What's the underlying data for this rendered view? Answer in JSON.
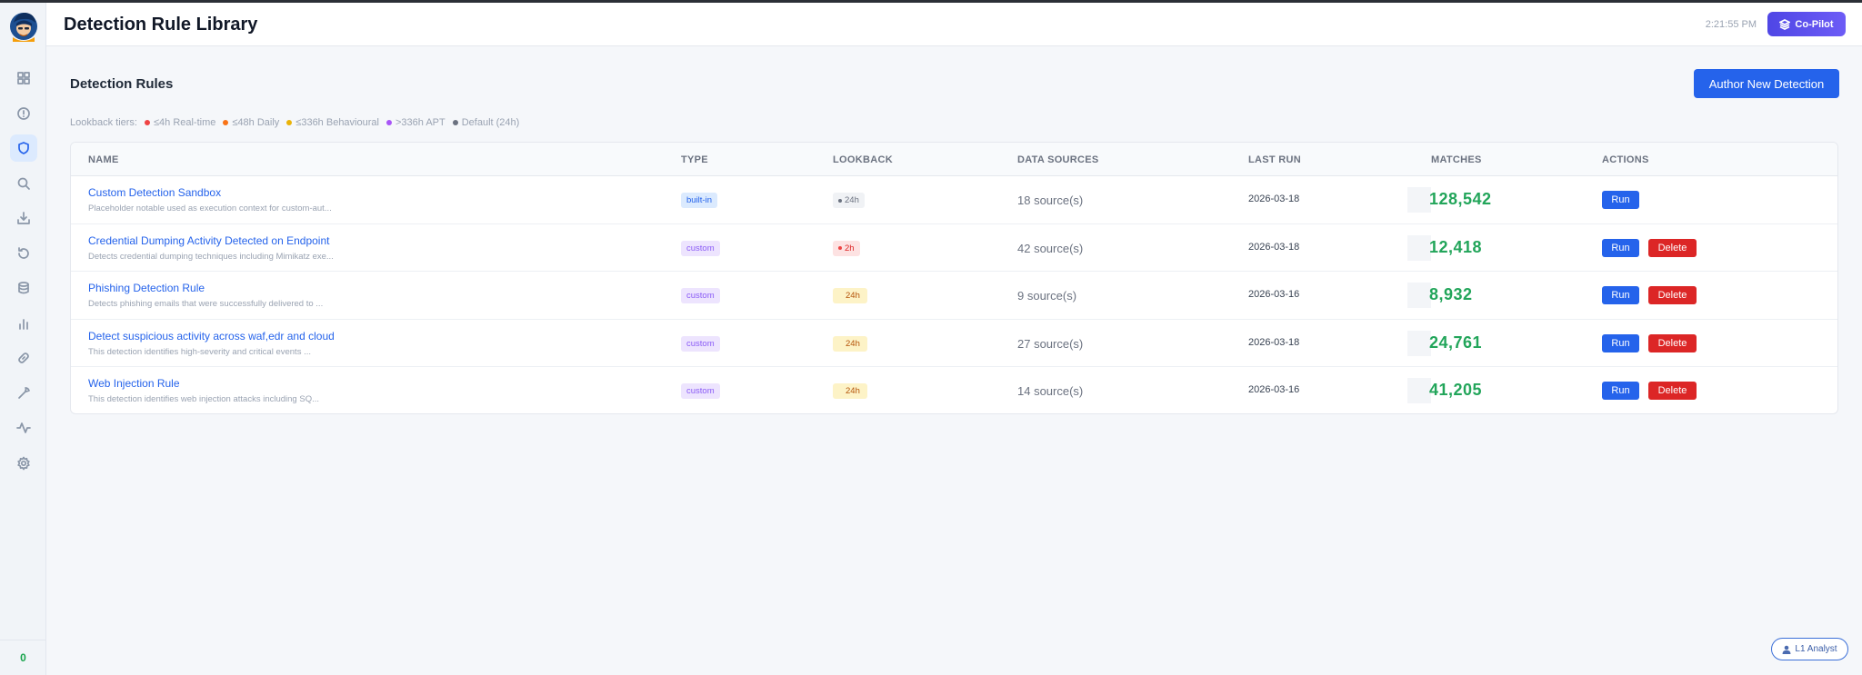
{
  "header": {
    "title": "Detection Rule Library",
    "clock": "2:21:55 PM",
    "copilot_label": "Co-Pilot"
  },
  "sidebar": {
    "items": [
      {
        "icon": "dashboard-icon",
        "active": false
      },
      {
        "icon": "alert-icon",
        "active": false
      },
      {
        "icon": "shield-icon",
        "active": true
      },
      {
        "icon": "search-icon",
        "active": false
      },
      {
        "icon": "download-icon",
        "active": false
      },
      {
        "icon": "history-icon",
        "active": false
      },
      {
        "icon": "database-icon",
        "active": false
      },
      {
        "icon": "bar-chart-icon",
        "active": false
      },
      {
        "icon": "link-icon",
        "active": false
      },
      {
        "icon": "wrench-icon",
        "active": false
      },
      {
        "icon": "activity-icon",
        "active": false
      },
      {
        "icon": "gear-icon",
        "active": false
      }
    ],
    "count": "0"
  },
  "section": {
    "title": "Detection Rules",
    "author_button": "Author New Detection"
  },
  "tiers": {
    "label": "Lookback tiers:",
    "items": [
      {
        "text": "≤4h Real-time",
        "color": "#ef4444"
      },
      {
        "text": "≤48h Daily",
        "color": "#f97316"
      },
      {
        "text": "≤336h Behavioural",
        "color": "#eab308"
      },
      {
        "text": ">336h APT",
        "color": "#a855f7"
      },
      {
        "text": "Default (24h)",
        "color": "#6b7280"
      }
    ]
  },
  "table": {
    "columns": [
      "NAME",
      "TYPE",
      "LOOKBACK",
      "DATA SOURCES",
      "LAST RUN",
      "MATCHES",
      "ACTIONS"
    ],
    "rows": [
      {
        "name": "Custom Detection Sandbox",
        "desc": "Placeholder notable used as execution context for custom-aut...",
        "type": "built-in",
        "lookback": "24h",
        "sources": "18 source(s)",
        "last_run": "2026-03-18",
        "matches": "128,542",
        "run": "Run",
        "delete": ""
      },
      {
        "name": "Credential Dumping Activity Detected on Endpoint",
        "desc": "Detects credential dumping techniques including Mimikatz exe...",
        "type": "custom",
        "lookback": "2h",
        "sources": "42 source(s)",
        "last_run": "2026-03-18",
        "matches": "12,418",
        "run": "Run",
        "delete": "Delete"
      },
      {
        "name": "Phishing Detection Rule",
        "desc": "Detects phishing emails that were successfully delivered to ...",
        "type": "custom",
        "lookback": "24h",
        "sources": "9 source(s)",
        "last_run": "2026-03-16",
        "matches": "8,932",
        "run": "Run",
        "delete": "Delete"
      },
      {
        "name": "Detect suspicious activity across waf,edr and cloud",
        "desc": "This detection identifies high-severity and critical events ...",
        "type": "custom",
        "lookback": "24h",
        "sources": "27 source(s)",
        "last_run": "2026-03-18",
        "matches": "24,761",
        "run": "Run",
        "delete": "Delete"
      },
      {
        "name": "Web Injection Rule",
        "desc": "This detection identifies web injection attacks including SQ...",
        "type": "custom",
        "lookback": "24h",
        "sources": "14 source(s)",
        "last_run": "2026-03-16",
        "matches": "41,205",
        "run": "Run",
        "delete": "Delete"
      }
    ]
  },
  "footer": {
    "role_label": "L1 Analyst"
  }
}
